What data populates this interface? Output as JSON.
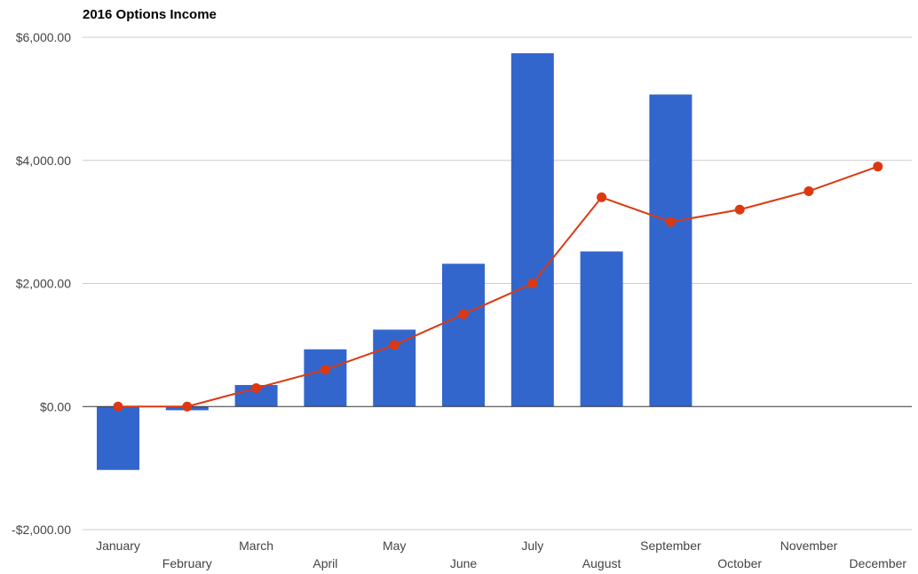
{
  "chart_data": {
    "type": "bar",
    "title": "2016 Options Income",
    "xlabel": "",
    "ylabel": "",
    "categories": [
      "January",
      "February",
      "March",
      "April",
      "May",
      "June",
      "July",
      "August",
      "September",
      "October",
      "November",
      "December"
    ],
    "series": [
      {
        "type": "bar",
        "values": [
          -1030,
          -60,
          350,
          930,
          1250,
          2320,
          5740,
          2520,
          5070,
          0,
          0,
          0
        ],
        "color": "#3366cc"
      },
      {
        "type": "line",
        "values": [
          0,
          0,
          300,
          600,
          1000,
          1500,
          2000,
          3400,
          3000,
          3200,
          3500,
          3900
        ],
        "color": "#dc3912"
      }
    ],
    "ylim": [
      -2000,
      6000
    ],
    "yticks": [
      -2000,
      0,
      2000,
      4000,
      6000
    ],
    "ytick_labels": [
      "-$2,000.00",
      "$0.00",
      "$2,000.00",
      "$4,000.00",
      "$6,000.00"
    ],
    "grid": true,
    "legend": "none"
  }
}
